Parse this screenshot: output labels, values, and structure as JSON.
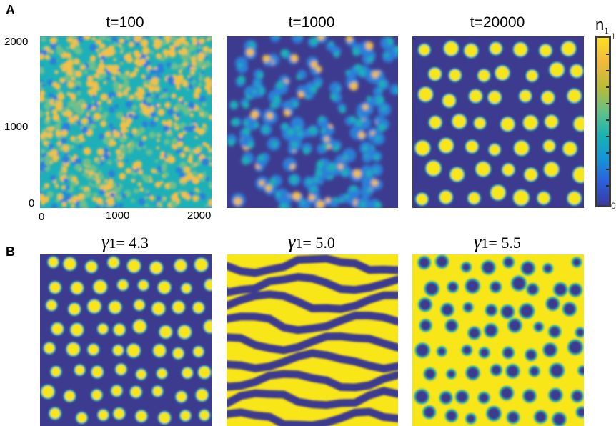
{
  "panel_a": {
    "letter": "A",
    "titles": [
      "t=100",
      "t=1000",
      "t=20000"
    ],
    "y_ticks": [
      "2000",
      "1000",
      "0"
    ],
    "x_ticks": [
      "0",
      "1000",
      "2000"
    ]
  },
  "panel_b": {
    "letter": "B",
    "gamma_symbol": "γ",
    "gamma_sub": "1",
    "values": [
      "= 4.3",
      "= 5.0",
      "= 5.5"
    ]
  },
  "colorbar": {
    "label": "n",
    "label_sub": "1",
    "top": "1",
    "bottom": "0",
    "colors": [
      "#3a3aa0",
      "#2c5fdc",
      "#1496d6",
      "#19b3b2",
      "#5ec08b",
      "#b8bc36",
      "#f2b93c",
      "#f9e021"
    ]
  },
  "colors": {
    "dark": "#3d3b8f",
    "yellow": "#f9e619",
    "teal": "#1eb0b8",
    "green": "#6cc08a",
    "orange": "#f2c04a",
    "blue": "#2b80d8"
  }
}
